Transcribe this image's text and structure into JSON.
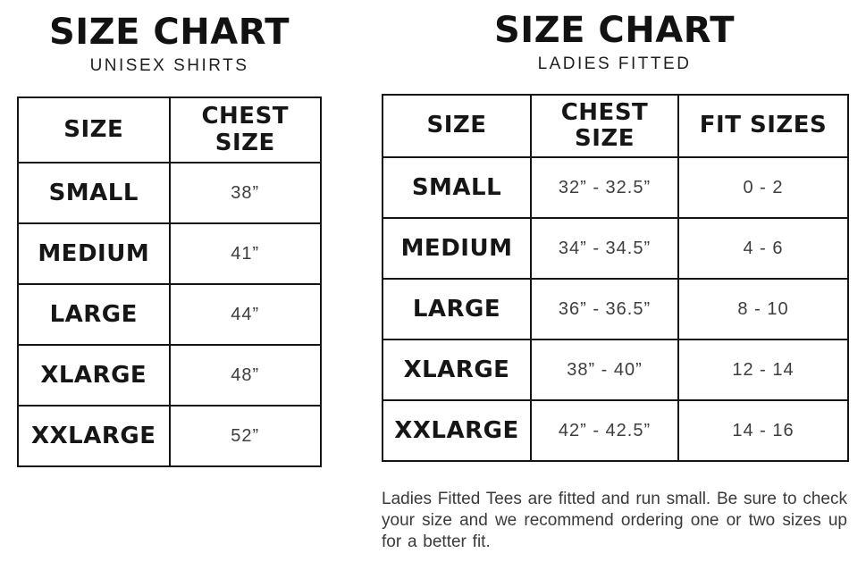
{
  "unisex_chart": {
    "title": "SIZE CHART",
    "subtitle": "UNISEX SHIRTS",
    "columns": [
      "SIZE",
      "CHEST\nSIZE"
    ],
    "rows": [
      {
        "size": "SMALL",
        "chest": "38”"
      },
      {
        "size": "MEDIUM",
        "chest": "41”"
      },
      {
        "size": "LARGE",
        "chest": "44”"
      },
      {
        "size": "XLARGE",
        "chest": "48”"
      },
      {
        "size": "XXLARGE",
        "chest": "52”"
      }
    ]
  },
  "ladies_chart": {
    "title": "SIZE CHART",
    "subtitle": "LADIES FITTED",
    "columns": [
      "SIZE",
      "CHEST\nSIZE",
      "FIT SIZES"
    ],
    "rows": [
      {
        "size": "SMALL",
        "chest": "32” - 32.5”",
        "fit": "0 - 2"
      },
      {
        "size": "MEDIUM",
        "chest": "34” - 34.5”",
        "fit": "4 - 6"
      },
      {
        "size": "LARGE",
        "chest": "36” - 36.5”",
        "fit": "8 - 10"
      },
      {
        "size": "XLARGE",
        "chest": "38” - 40”",
        "fit": "12 - 14"
      },
      {
        "size": "XXLARGE",
        "chest": "42” - 42.5”",
        "fit": "14 - 16"
      }
    ]
  },
  "note": "Ladies Fitted Tees are fitted and run small. Be sure to check your size and we recommend ordering one or two sizes up for a better fit.",
  "colors": {
    "background": "#ffffff",
    "border": "#151515",
    "heading_text": "#121212",
    "value_text": "#3d3d3d"
  }
}
